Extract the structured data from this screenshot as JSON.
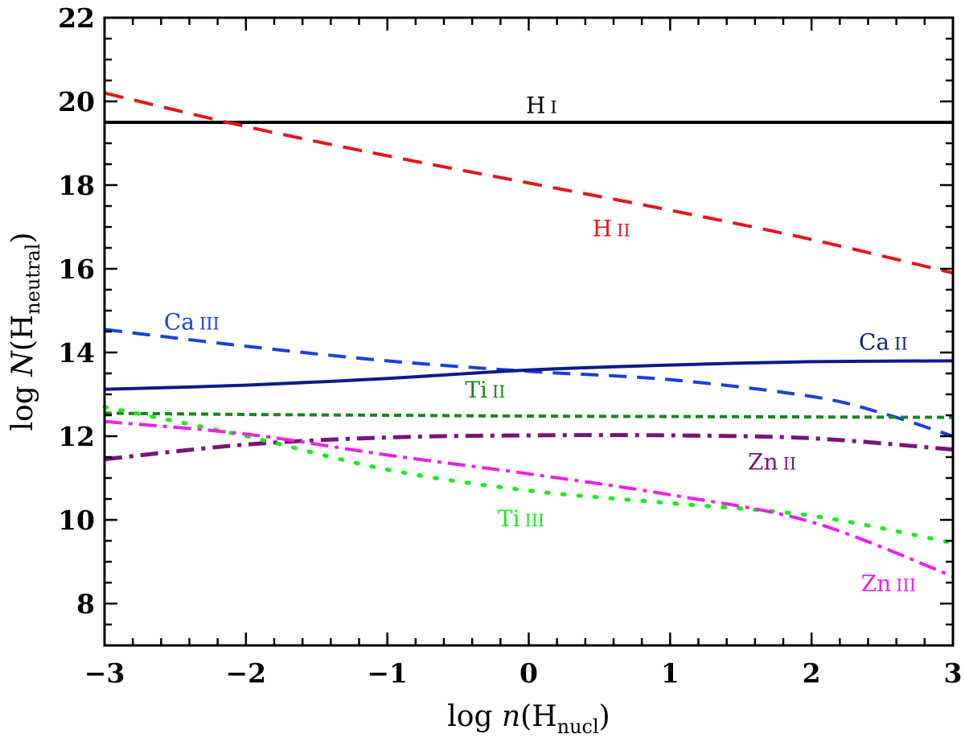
{
  "chart_data": {
    "type": "line",
    "title": "",
    "xlabel": {
      "prefix": "log ",
      "var": "n",
      "open": "(H",
      "sub": "nucl",
      "close": ")"
    },
    "ylabel": {
      "prefix": "log ",
      "var": "N",
      "open": "(H",
      "sub": "neutral",
      "close": ")"
    },
    "xlim": [
      -3,
      3
    ],
    "ylim": [
      7,
      22
    ],
    "xticks": [
      -3,
      -2,
      -1,
      0,
      1,
      2,
      3
    ],
    "xtick_labels": [
      "−3",
      "−2",
      "−1",
      "0",
      "1",
      "2",
      "3"
    ],
    "yticks": [
      8,
      10,
      12,
      14,
      16,
      18,
      20,
      22
    ],
    "ytick_labels": [
      "8",
      "10",
      "12",
      "14",
      "16",
      "18",
      "20",
      "22"
    ],
    "grid": false,
    "legend": "inline labels",
    "series": [
      {
        "name": "H I",
        "elem": "H",
        "ion": "I",
        "color": "#000000",
        "dash": "",
        "width": 4,
        "x": [
          -3,
          0,
          3
        ],
        "y": [
          19.5,
          19.5,
          19.5
        ],
        "label_at": [
          -0.02,
          19.72
        ],
        "label_anchor": "start"
      },
      {
        "name": "H II",
        "elem": "H",
        "ion": "II",
        "color": "#e8141b",
        "dash": "24,14",
        "width": 4,
        "x": [
          -3,
          -2,
          -1,
          0,
          1,
          2,
          3
        ],
        "y": [
          20.2,
          19.4,
          18.7,
          18.05,
          17.4,
          16.7,
          15.9
        ],
        "label_at": [
          0.45,
          16.78
        ],
        "label_anchor": "start"
      },
      {
        "name": "Ca III",
        "elem": "Ca",
        "ion": "III",
        "color": "#1a3fe0",
        "dash": "22,13",
        "width": 4,
        "x": [
          -3,
          -2,
          -1,
          0,
          1,
          2,
          2.5,
          3
        ],
        "y": [
          14.55,
          14.15,
          13.8,
          13.55,
          13.35,
          12.95,
          12.55,
          12.0
        ],
        "label_at": [
          -2.58,
          14.55
        ],
        "label_anchor": "start"
      },
      {
        "name": "Ca II",
        "elem": "Ca",
        "ion": "II",
        "color": "#0d1b8a",
        "dash": "",
        "width": 4,
        "x": [
          -3,
          -2,
          -1,
          0,
          1,
          2,
          3
        ],
        "y": [
          13.12,
          13.22,
          13.38,
          13.58,
          13.7,
          13.78,
          13.8
        ],
        "label_at": [
          2.68,
          14.07
        ],
        "label_anchor": "end"
      },
      {
        "name": "Ti II",
        "elem": "Ti",
        "ion": "II",
        "color": "#16861c",
        "dash": "9,6",
        "width": 4,
        "x": [
          -3,
          -2,
          -1,
          0,
          1,
          2,
          3
        ],
        "y": [
          12.55,
          12.52,
          12.5,
          12.48,
          12.47,
          12.46,
          12.45
        ],
        "label_at": [
          -0.45,
          12.92
        ],
        "label_anchor": "start"
      },
      {
        "name": "Zn II",
        "elem": "Zn",
        "ion": "II",
        "color": "#7a137a",
        "dash": "22,9,5,9",
        "width": 5,
        "x": [
          -3,
          -2,
          -1,
          0,
          1,
          2,
          3
        ],
        "y": [
          11.45,
          11.8,
          11.97,
          12.02,
          12.02,
          11.95,
          11.68
        ],
        "label_at": [
          1.55,
          11.2
        ],
        "label_anchor": "start"
      },
      {
        "name": "Ti III",
        "elem": "Ti",
        "ion": "III",
        "color": "#18ef18",
        "dash": "3,17",
        "width": 5,
        "x": [
          -3,
          -2,
          -1,
          0,
          1,
          2,
          3
        ],
        "y": [
          12.7,
          12.0,
          11.2,
          10.7,
          10.4,
          10.1,
          9.45
        ],
        "label_at": [
          -0.22,
          9.85
        ],
        "label_anchor": "start"
      },
      {
        "name": "Zn III",
        "elem": "Zn",
        "ion": "III",
        "color": "#f21ee6",
        "dash": "22,8,5,8",
        "width": 4,
        "x": [
          -3,
          -2,
          -1,
          0,
          1,
          2,
          3
        ],
        "y": [
          12.35,
          12.05,
          11.55,
          11.1,
          10.6,
          9.95,
          8.65
        ],
        "label_at": [
          2.35,
          8.3
        ],
        "label_anchor": "start"
      }
    ]
  }
}
